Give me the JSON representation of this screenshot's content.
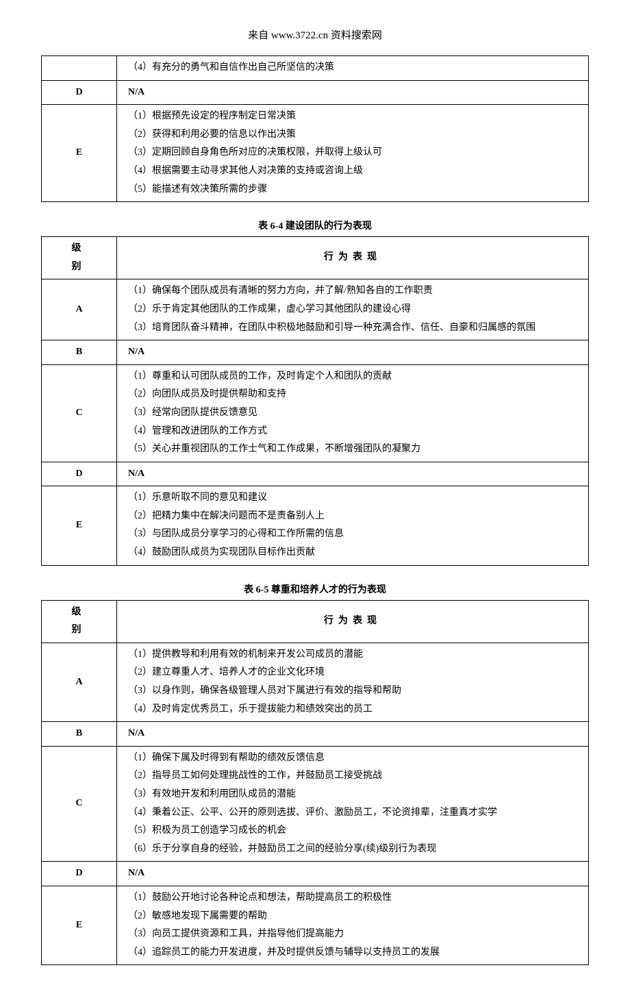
{
  "header": "来自  www.3722.cn 资料搜索网",
  "table_top": {
    "rows": [
      {
        "level": "",
        "items": [
          "（4）有充分的勇气和自信作出自己所坚信的决策"
        ]
      },
      {
        "level": "D",
        "items": [
          "N/A"
        ],
        "na": true
      },
      {
        "level": "E",
        "items": [
          "（1）根据预先设定的程序制定日常决策",
          "（2）获得和利用必要的信息以作出决策",
          "（3）定期回顾自身角色所对应的决策权限，并取得上级认可",
          "（4）根据需要主动寻求其他人对决策的支持或咨询上级",
          "（5）能描述有效决策所需的步骤"
        ]
      }
    ]
  },
  "table64": {
    "caption": "表 6-4   建设团队的行为表现",
    "header_level": "级别",
    "header_behavior": "行为表现",
    "rows": [
      {
        "level": "A",
        "items": [
          "（1）确保每个团队成员有清晰的努力方向，并了解/熟知各自的工作职责",
          "（2）乐于肯定其他团队的工作成果，虚心学习其他团队的建设心得",
          "（3）培育团队奋斗精神，在团队中积极地鼓励和引导一种充满合作、信任、自豪和归属感的氛围"
        ]
      },
      {
        "level": "B",
        "items": [
          "N/A"
        ],
        "na": true
      },
      {
        "level": "C",
        "items": [
          "（1）尊重和认可团队成员的工作，及时肯定个人和团队的贡献",
          "（2）向团队成员及时提供帮助和支持",
          "（3）经常向团队提供反馈意见",
          "（4）管理和改进团队的工作方式",
          "（5）关心并重视团队的工作士气和工作成果，不断增强团队的凝聚力"
        ]
      },
      {
        "level": "D",
        "items": [
          "N/A"
        ],
        "na": true
      },
      {
        "level": "E",
        "items": [
          "（1）乐意听取不同的意见和建议",
          "（2）把精力集中在解决问题而不是责备别人上",
          "（3）与团队成员分享学习的心得和工作所需的信息",
          "（4）鼓励团队成员为实现团队目标作出贡献"
        ]
      }
    ]
  },
  "table65": {
    "caption": "表 6-5   尊重和培养人才的行为表现",
    "header_level": "级别",
    "header_behavior": "行为表现",
    "rows": [
      {
        "level": "A",
        "items": [
          "（1）提供教导和利用有效的机制来开发公司成员的潜能",
          "（2）建立尊重人才、培养人才的企业文化环境",
          "（3）以身作则，确保各级管理人员对下属进行有效的指导和帮助",
          "（4）及时肯定优秀员工，乐于提拔能力和绩效突出的员工"
        ]
      },
      {
        "level": "B",
        "items": [
          "N/A"
        ],
        "na": true
      },
      {
        "level": "C",
        "items": [
          "（1）确保下属及时得到有帮助的绩效反馈信息",
          "（2）指导员工如何处理挑战性的工作，并鼓励员工接受挑战",
          "（3）有效地开发和利用团队成员的潜能",
          "（4）秉着公正、公平、公开的原则选拔、评价、激励员工，不论资排辈，注重真才实学",
          "（5）积极为员工创造学习成长的机会",
          "（6）乐于分享自身的经验，并鼓励员工之间的经验分享(续)级别行为表现"
        ]
      },
      {
        "level": "D",
        "items": [
          "N/A"
        ],
        "na": true
      },
      {
        "level": "E",
        "items": [
          "（1）鼓励公开地讨论各种论点和想法，帮助提高员工的积极性",
          "（2）敏感地发现下属需要的帮助",
          "（3）向员工提供资源和工具，并指导他们提高能力",
          "（4）追踪员工的能力开发进度，并及时提供反馈与辅导以支持员工的发展"
        ]
      }
    ]
  }
}
